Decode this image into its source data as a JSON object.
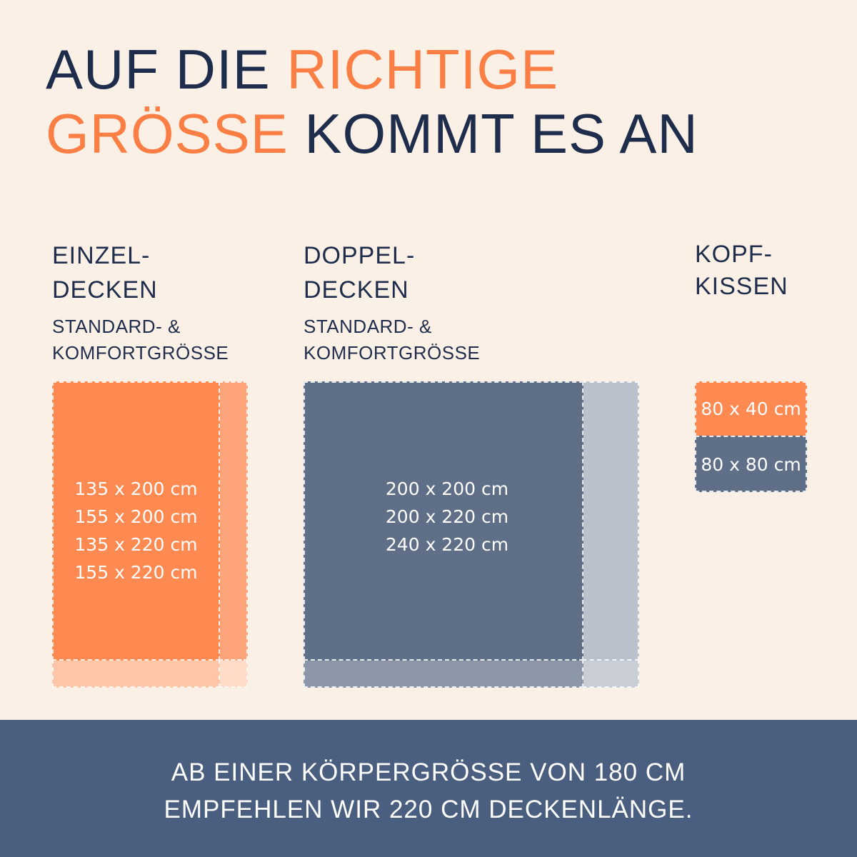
{
  "title": {
    "line1_a": "AUF DIE ",
    "line1_b": "RICHTIGE",
    "line2_a": "GRÖSSE",
    "line2_b": " KOMMT ES AN"
  },
  "colors": {
    "background": "#fbf0e6",
    "navy": "#1f2d4d",
    "orange": "#fb7f45",
    "slate": "#5f6f87",
    "footer": "#4a5e80"
  },
  "einzel": {
    "heading1": "EINZEL-",
    "heading2": "DECKEN",
    "sub1": "STANDARD- &",
    "sub2": "KOMFORTGRÖSSE",
    "sizes": [
      "135 x 200 cm",
      "155 x 200 cm",
      "135 x 220 cm",
      "155 x 220 cm"
    ]
  },
  "doppel": {
    "heading1": "DOPPEL-",
    "heading2": "DECKEN",
    "sub1": "STANDARD- &",
    "sub2": "KOMFORTGRÖSSE",
    "sizes": [
      "200 x 200 cm",
      "200 x 220 cm",
      "240 x 220 cm"
    ]
  },
  "kissen": {
    "heading1": "KOPF-",
    "heading2": "KISSEN",
    "sizes": [
      "80 x 40 cm",
      "80 x 80 cm"
    ]
  },
  "footer": {
    "line1": "AB EINER KÖRPERGRÖSSE VON 180 CM",
    "line2": "EMPFEHLEN WIR 220 CM DECKENLÄNGE."
  }
}
